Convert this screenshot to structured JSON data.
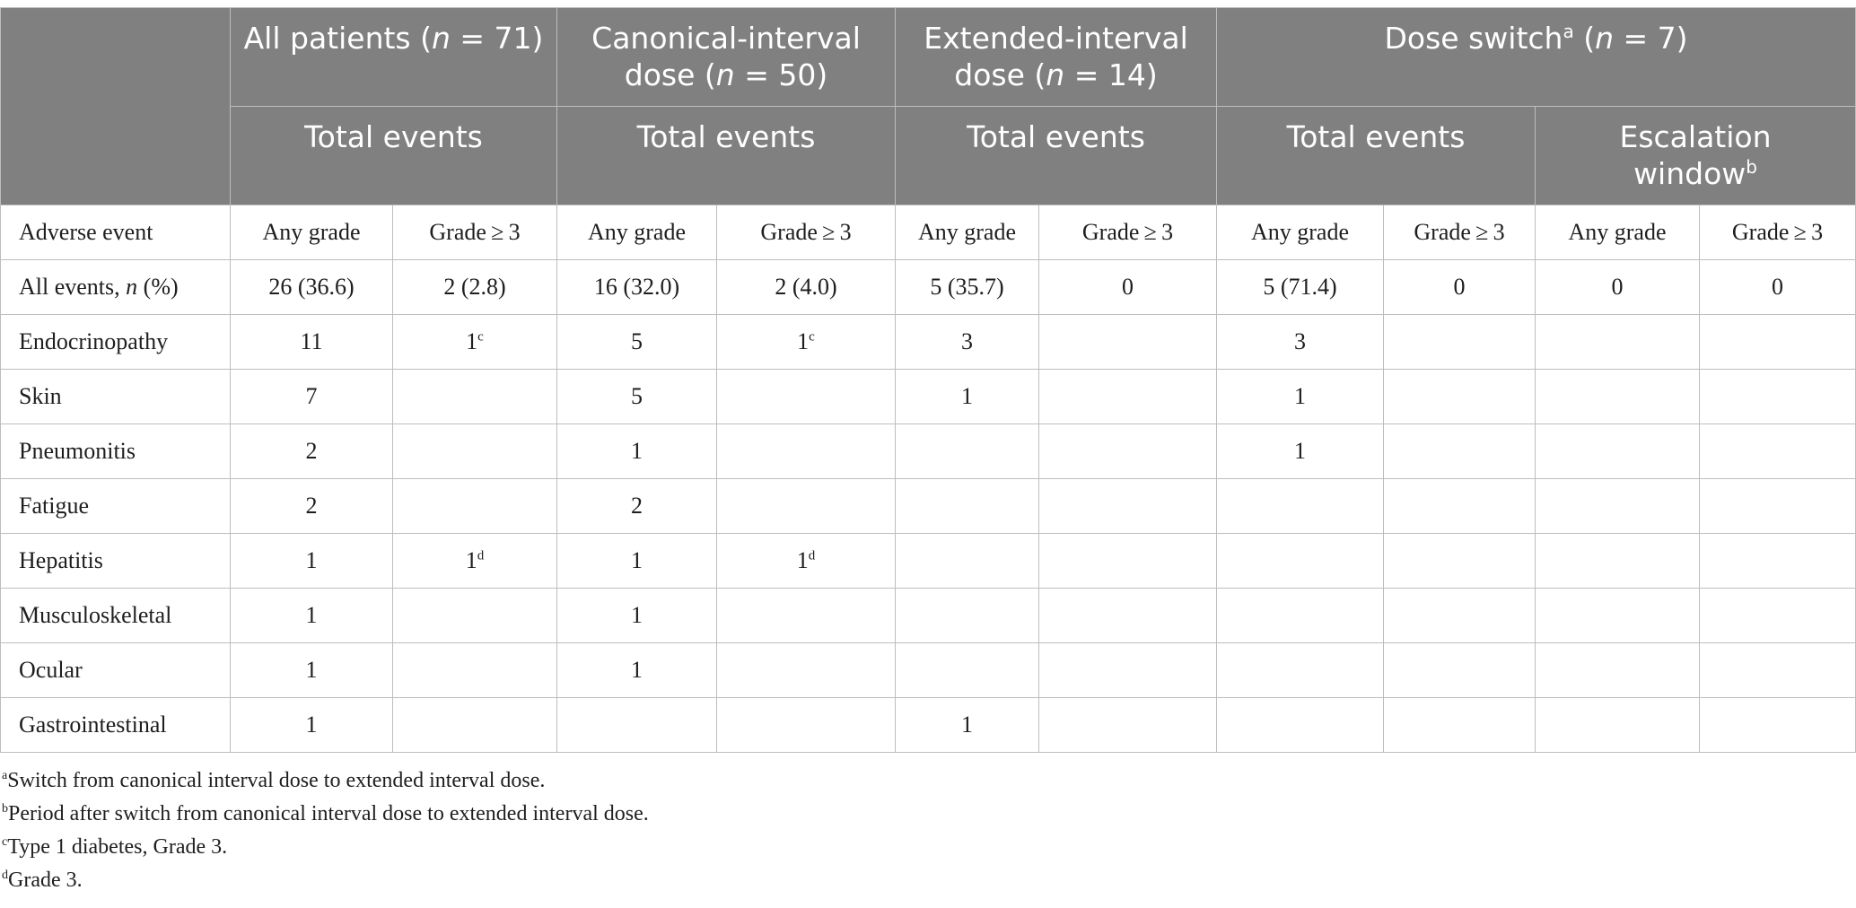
{
  "header": {
    "group_all": {
      "label": "All patients (",
      "n_label": "n",
      "value": " = 71)"
    },
    "group_canonical": {
      "line1": "Canonical-interval",
      "label": "dose (",
      "n_label": "n",
      "value": " = 50)"
    },
    "group_extended": {
      "line1": "Extended-interval",
      "label": "dose (",
      "n_label": "n",
      "value": " = 14)"
    },
    "group_switch": {
      "label": "Dose switch",
      "sup": "a",
      "label2": " (",
      "n_label": "n",
      "value": " = 7)"
    },
    "total_events": "Total events",
    "escalation_line1": "Escalation",
    "escalation_line2": "window",
    "escalation_sup": "b"
  },
  "subheader": {
    "first": "Adverse event",
    "any_grade": "Any grade",
    "grade3": "Grade ≥ 3"
  },
  "rows": [
    {
      "label": "All events, ",
      "label_italic": "n",
      "label_suffix": " (%)",
      "cells": [
        [
          "26 (36.6)",
          ""
        ],
        [
          "2 (2.8)",
          ""
        ],
        [
          "16 (32.0)",
          ""
        ],
        [
          "2 (4.0)",
          ""
        ],
        [
          "5 (35.7)",
          ""
        ],
        [
          "0",
          ""
        ],
        [
          "5 (71.4)",
          ""
        ],
        [
          "0",
          ""
        ],
        [
          "0",
          ""
        ],
        [
          "0",
          ""
        ]
      ]
    },
    {
      "label": "Endocrinopathy",
      "label_italic": "",
      "label_suffix": "",
      "cells": [
        [
          "11",
          ""
        ],
        [
          "1",
          "c"
        ],
        [
          "5",
          ""
        ],
        [
          "1",
          "c"
        ],
        [
          "3",
          ""
        ],
        [
          "",
          ""
        ],
        [
          "3",
          ""
        ],
        [
          "",
          ""
        ],
        [
          "",
          ""
        ],
        [
          "",
          ""
        ]
      ]
    },
    {
      "label": "Skin",
      "label_italic": "",
      "label_suffix": "",
      "cells": [
        [
          "7",
          ""
        ],
        [
          "",
          ""
        ],
        [
          "5",
          ""
        ],
        [
          "",
          ""
        ],
        [
          "1",
          ""
        ],
        [
          "",
          ""
        ],
        [
          "1",
          ""
        ],
        [
          "",
          ""
        ],
        [
          "",
          ""
        ],
        [
          "",
          ""
        ]
      ]
    },
    {
      "label": "Pneumonitis",
      "label_italic": "",
      "label_suffix": "",
      "cells": [
        [
          "2",
          ""
        ],
        [
          "",
          ""
        ],
        [
          "1",
          ""
        ],
        [
          "",
          ""
        ],
        [
          "",
          ""
        ],
        [
          "",
          ""
        ],
        [
          "1",
          ""
        ],
        [
          "",
          ""
        ],
        [
          "",
          ""
        ],
        [
          "",
          ""
        ]
      ]
    },
    {
      "label": "Fatigue",
      "label_italic": "",
      "label_suffix": "",
      "cells": [
        [
          "2",
          ""
        ],
        [
          "",
          ""
        ],
        [
          "2",
          ""
        ],
        [
          "",
          ""
        ],
        [
          "",
          ""
        ],
        [
          "",
          ""
        ],
        [
          "",
          ""
        ],
        [
          "",
          ""
        ],
        [
          "",
          ""
        ],
        [
          "",
          ""
        ]
      ]
    },
    {
      "label": "Hepatitis",
      "label_italic": "",
      "label_suffix": "",
      "cells": [
        [
          "1",
          ""
        ],
        [
          "1",
          "d"
        ],
        [
          "1",
          ""
        ],
        [
          "1",
          "d"
        ],
        [
          "",
          ""
        ],
        [
          "",
          ""
        ],
        [
          "",
          ""
        ],
        [
          "",
          ""
        ],
        [
          "",
          ""
        ],
        [
          "",
          ""
        ]
      ]
    },
    {
      "label": "Musculoskeletal",
      "label_italic": "",
      "label_suffix": "",
      "cells": [
        [
          "1",
          ""
        ],
        [
          "",
          ""
        ],
        [
          "1",
          ""
        ],
        [
          "",
          ""
        ],
        [
          "",
          ""
        ],
        [
          "",
          ""
        ],
        [
          "",
          ""
        ],
        [
          "",
          ""
        ],
        [
          "",
          ""
        ],
        [
          "",
          ""
        ]
      ]
    },
    {
      "label": "Ocular",
      "label_italic": "",
      "label_suffix": "",
      "cells": [
        [
          "1",
          ""
        ],
        [
          "",
          ""
        ],
        [
          "1",
          ""
        ],
        [
          "",
          ""
        ],
        [
          "",
          ""
        ],
        [
          "",
          ""
        ],
        [
          "",
          ""
        ],
        [
          "",
          ""
        ],
        [
          "",
          ""
        ],
        [
          "",
          ""
        ]
      ]
    },
    {
      "label": "Gastrointestinal",
      "label_italic": "",
      "label_suffix": "",
      "cells": [
        [
          "1",
          ""
        ],
        [
          "",
          ""
        ],
        [
          "",
          ""
        ],
        [
          "",
          ""
        ],
        [
          "1",
          ""
        ],
        [
          "",
          ""
        ],
        [
          "",
          ""
        ],
        [
          "",
          ""
        ],
        [
          "",
          ""
        ],
        [
          "",
          ""
        ]
      ]
    }
  ],
  "footnotes": [
    {
      "mark": "a",
      "text": "Switch from canonical interval dose to extended interval dose."
    },
    {
      "mark": "b",
      "text": "Period after switch from canonical interval dose to extended interval dose."
    },
    {
      "mark": "c",
      "text": "Type 1 diabetes, Grade 3."
    },
    {
      "mark": "d",
      "text": "Grade 3."
    }
  ],
  "colors": {
    "header_bg": "#808080",
    "header_text": "#ffffff",
    "grid": "#bdbdbd"
  }
}
